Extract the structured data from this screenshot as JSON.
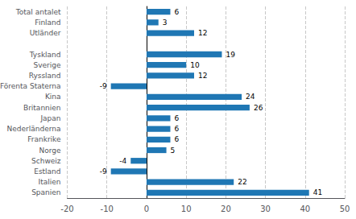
{
  "chart_data": {
    "type": "bar",
    "orientation": "horizontal",
    "categories": [
      "Total antalet",
      "Finland",
      "Utländer",
      null,
      "Tyskland",
      "Sverige",
      "Ryssland",
      "Förenta Staterna",
      "Kina",
      "Britannien",
      "Japan",
      "Nederländerna",
      "Frankrike",
      "Norge",
      "Schweiz",
      "Estland",
      "Italien",
      "Spanien"
    ],
    "values": [
      6,
      3,
      12,
      null,
      19,
      10,
      12,
      -9,
      24,
      26,
      6,
      6,
      6,
      5,
      -4,
      -9,
      22,
      41
    ],
    "color": "#1f77b4",
    "xlim": [
      -20,
      50
    ],
    "xticks": [
      -20,
      -10,
      0,
      10,
      20,
      30,
      40,
      50
    ],
    "grid": true,
    "data_labels": true
  }
}
